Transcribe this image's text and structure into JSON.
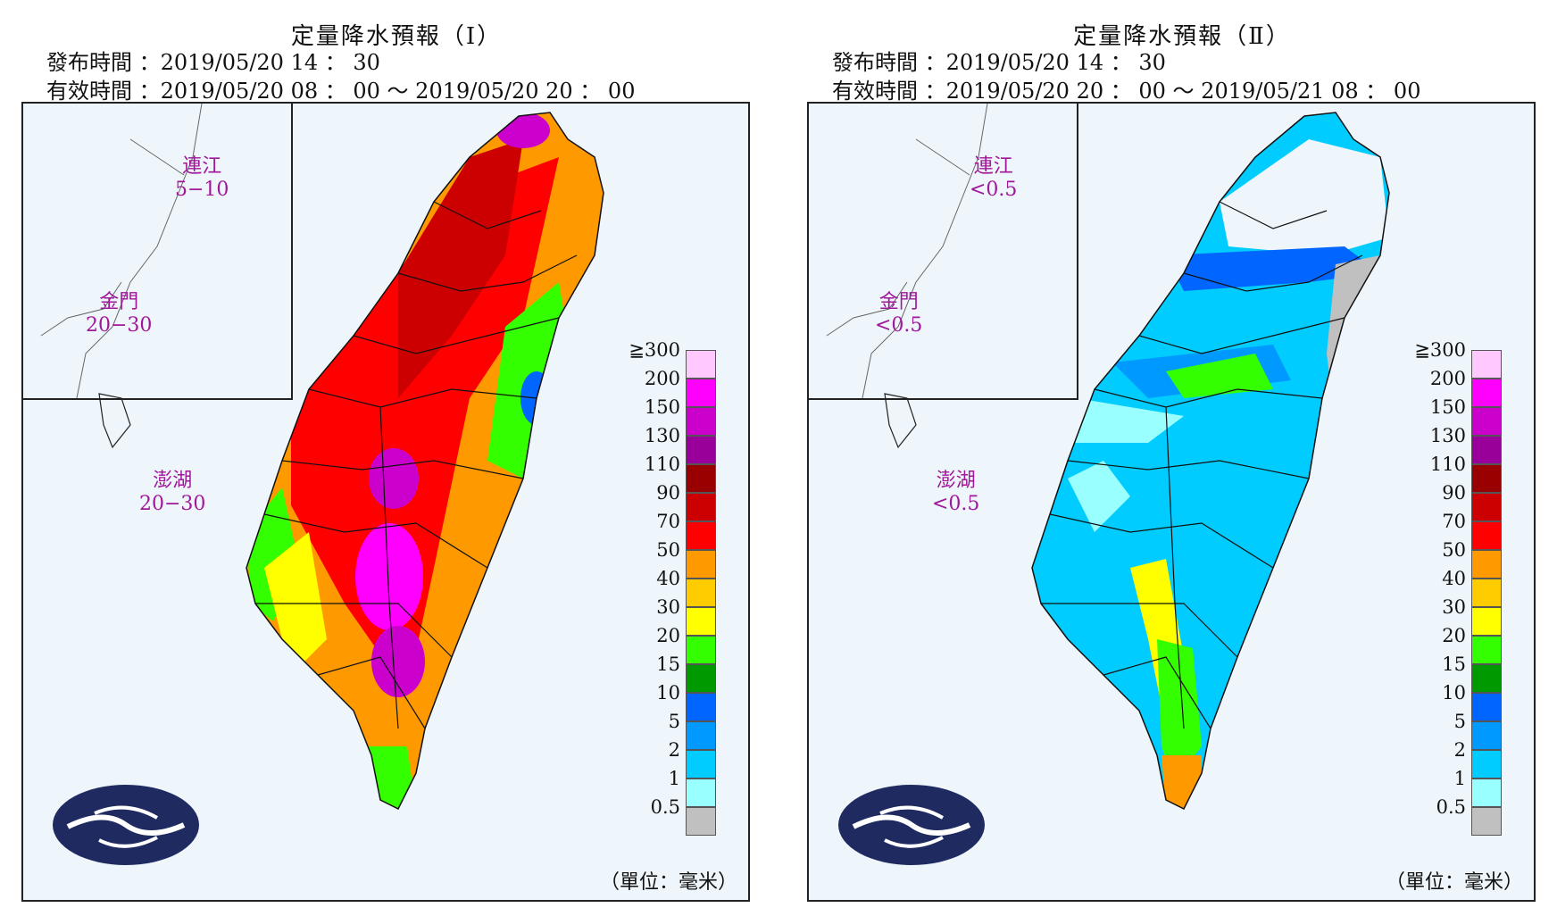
{
  "panels": [
    {
      "title": "定量降水預報（Ⅰ）",
      "issued": "發布時間 ：2019/05/20 14 ： 30",
      "valid": "有效時間 ：2019/05/20 08 ： 00 〜 2019/05/20 20 ： 00",
      "islands": {
        "lienchiang": {
          "name": "連江",
          "value": "5−10"
        },
        "kinmen": {
          "name": "金門",
          "value": "20−30"
        },
        "penghu": {
          "name": "澎湖",
          "value": "20−30"
        }
      }
    },
    {
      "title": "定量降水預報（Ⅱ）",
      "issued": "發布時間 ：2019/05/20 14 ： 30",
      "valid": "有效時間 ：2019/05/20 20 ： 00 〜 2019/05/21 08 ： 00",
      "islands": {
        "lienchiang": {
          "name": "連江",
          "value": "<0.5"
        },
        "kinmen": {
          "name": "金門",
          "value": "<0.5"
        },
        "penghu": {
          "name": "澎湖",
          "value": "<0.5"
        }
      }
    }
  ],
  "legend": {
    "labels": [
      "≧300",
      "200",
      "150",
      "130",
      "110",
      "90",
      "70",
      "50",
      "40",
      "30",
      "20",
      "15",
      "10",
      "5",
      "2",
      "1",
      "0.5"
    ],
    "colors": [
      "#ffc8ff",
      "#ff00ff",
      "#cc00cc",
      "#990099",
      "#990000",
      "#cc0000",
      "#ff0000",
      "#ff9900",
      "#ffcc00",
      "#ffff00",
      "#33ff00",
      "#009900",
      "#0066ff",
      "#0099ff",
      "#00ccff",
      "#99ffff",
      "#c0c0c0"
    ],
    "unit": "（單位：毫米）"
  }
}
